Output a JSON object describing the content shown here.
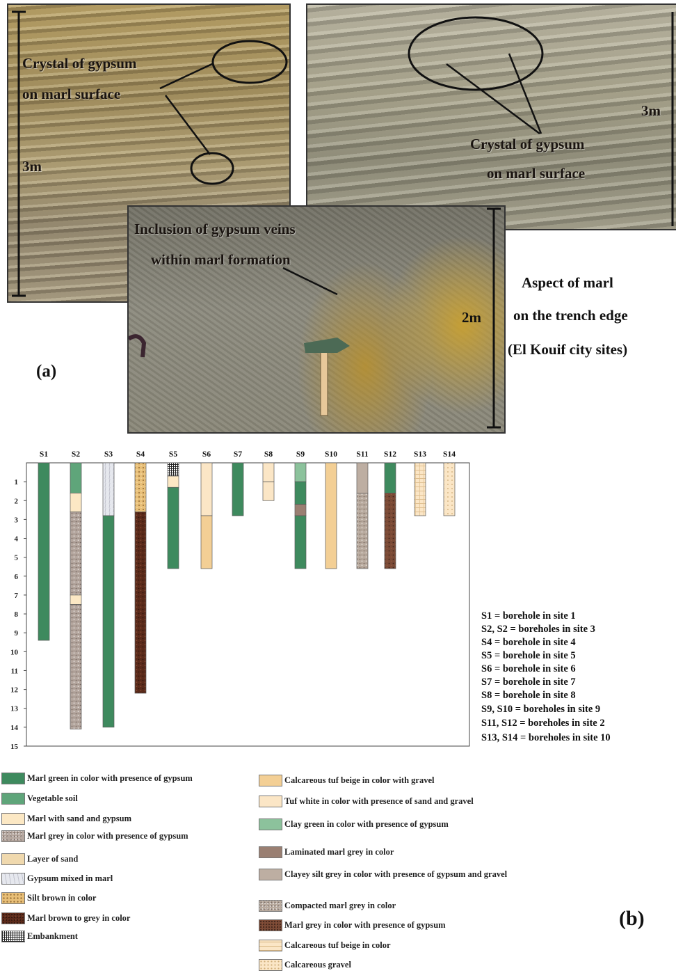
{
  "panel_a": {
    "label": "(a)",
    "photo_left": {
      "scale": "3m",
      "caption_line1": "Crystal of gypsum",
      "caption_line2": "on marl surface"
    },
    "photo_right": {
      "scale": "3m",
      "caption_line1": "Crystal of gypsum",
      "caption_line2": "on marl surface"
    },
    "photo_bottom": {
      "scale": "2m",
      "caption_line1": "Inclusion of gypsum veins",
      "caption_line2": "within marl formation"
    },
    "aspect_line1": "Aspect of marl",
    "aspect_line2": "on the trench edge",
    "aspect_line3": "(El Kouif city sites)"
  },
  "panel_b": {
    "label": "(b)",
    "key": [
      "S1 = borehole in site 1",
      "S2, S2 = boreholes in site 3",
      "S4 = borehole in site 4",
      "S5 = borehole in site 5",
      "S6 = borehole in site 6",
      "S7 = borehole in site 7",
      "S8 = borehole in site 8",
      "S9, S10 = boreholes in site 9",
      "S11, S12 = boreholes in site 2",
      "S13, S14 = boreholes in site 10"
    ]
  },
  "legend_left": [
    {
      "label": "Marl green in color with presence of gypsum",
      "fill": "#3e8a5e",
      "pattern": "solid"
    },
    {
      "label": "Vegetable soil",
      "fill": "#5fa57a",
      "pattern": "solid"
    },
    {
      "label": "Marl with sand and gypsum",
      "fill": "#fce8c4",
      "pattern": "solid"
    },
    {
      "label": "Marl grey in color with presence of gypsum",
      "fill": "#b4a69e",
      "pattern": "speckle"
    },
    {
      "label": "Layer of sand",
      "fill": "#f0d9ae",
      "pattern": "solid"
    },
    {
      "label": "Gypsum mixed in marl",
      "fill": "#e6e8ee",
      "pattern": "streak"
    },
    {
      "label": "Silt brown in color",
      "fill": "#e8bf78",
      "pattern": "dots"
    },
    {
      "label": "Marl brown to grey in color",
      "fill": "#5a2a1a",
      "pattern": "speckle-dark"
    },
    {
      "label": "Embankment",
      "fill": "#ffffff",
      "pattern": "grid"
    }
  ],
  "legend_right": [
    {
      "label": "Calcareous tuf beige in color with gravel",
      "fill": "#f3cf95",
      "pattern": "solid"
    },
    {
      "label": "Tuf white in color with presence of sand and gravel",
      "fill": "#fbe6c6",
      "pattern": "solid"
    },
    {
      "label": "Clay green in color with presence of gypsum",
      "fill": "#8cc29c",
      "pattern": "solid"
    },
    {
      "label": "Laminated marl grey in color",
      "fill": "#9a7f72",
      "pattern": "solid"
    },
    {
      "label": "Clayey silt grey in color with presence of gypsum and gravel",
      "fill": "#bdaea2",
      "pattern": "solid"
    },
    {
      "label": "Compacted marl grey in color",
      "fill": "#b9ab9f",
      "pattern": "speckle"
    },
    {
      "label": "Marl grey in color with presence of gypsum",
      "fill": "#7a4a36",
      "pattern": "speckle-dark"
    },
    {
      "label": "Calcareous tuf beige in color",
      "fill": "#fbe6c6",
      "pattern": "brick"
    },
    {
      "label": "Calcareous gravel",
      "fill": "#fbe6c6",
      "pattern": "dots-light"
    }
  ],
  "chart_data": {
    "type": "borehole-log",
    "ylabels": [
      "1",
      "2",
      "3",
      "4",
      "5",
      "6",
      "7",
      "8",
      "9",
      "10",
      "11",
      "12",
      "13",
      "14",
      "15"
    ],
    "ylim": [
      0,
      15
    ],
    "boreholes": [
      {
        "name": "S1",
        "layers": [
          {
            "from": 0,
            "to": 9.4,
            "fill": "#3e8a5e",
            "pattern": "solid"
          }
        ]
      },
      {
        "name": "S2",
        "layers": [
          {
            "from": 0,
            "to": 1.6,
            "fill": "#5fa57a",
            "pattern": "solid"
          },
          {
            "from": 1.6,
            "to": 2.6,
            "fill": "#fce8c4",
            "pattern": "solid"
          },
          {
            "from": 2.6,
            "to": 7.0,
            "fill": "#b4a69e",
            "pattern": "speckle"
          },
          {
            "from": 7.0,
            "to": 7.5,
            "fill": "#fce8c4",
            "pattern": "solid"
          },
          {
            "from": 7.5,
            "to": 14.1,
            "fill": "#b4a69e",
            "pattern": "speckle"
          }
        ]
      },
      {
        "name": "S3",
        "layers": [
          {
            "from": 0,
            "to": 2.8,
            "fill": "#e6e8ee",
            "pattern": "streak"
          },
          {
            "from": 2.8,
            "to": 14.0,
            "fill": "#3e8a5e",
            "pattern": "solid"
          }
        ]
      },
      {
        "name": "S4",
        "layers": [
          {
            "from": 0,
            "to": 2.6,
            "fill": "#e8bf78",
            "pattern": "dots"
          },
          {
            "from": 2.6,
            "to": 12.2,
            "fill": "#5a2a1a",
            "pattern": "speckle-dark"
          }
        ]
      },
      {
        "name": "S5",
        "layers": [
          {
            "from": 0,
            "to": 0.7,
            "fill": "#ffffff",
            "pattern": "grid"
          },
          {
            "from": 0.7,
            "to": 1.3,
            "fill": "#fce8c4",
            "pattern": "solid"
          },
          {
            "from": 1.3,
            "to": 5.6,
            "fill": "#3e8a5e",
            "pattern": "solid"
          }
        ]
      },
      {
        "name": "S6",
        "layers": [
          {
            "from": 0,
            "to": 2.8,
            "fill": "#fbe6c6",
            "pattern": "solid"
          },
          {
            "from": 2.8,
            "to": 5.6,
            "fill": "#f3cf95",
            "pattern": "solid"
          }
        ]
      },
      {
        "name": "S7",
        "layers": [
          {
            "from": 0,
            "to": 2.8,
            "fill": "#3e8a5e",
            "pattern": "solid"
          }
        ]
      },
      {
        "name": "S8",
        "layers": [
          {
            "from": 0,
            "to": 1.0,
            "fill": "#fbe6c6",
            "pattern": "solid"
          },
          {
            "from": 1.0,
            "to": 2.0,
            "fill": "#fbe6c6",
            "pattern": "solid"
          }
        ]
      },
      {
        "name": "S9",
        "layers": [
          {
            "from": 0,
            "to": 1.0,
            "fill": "#8cc29c",
            "pattern": "solid"
          },
          {
            "from": 1.0,
            "to": 2.2,
            "fill": "#3e8a5e",
            "pattern": "solid"
          },
          {
            "from": 2.2,
            "to": 2.8,
            "fill": "#9a7f72",
            "pattern": "solid"
          },
          {
            "from": 2.8,
            "to": 5.6,
            "fill": "#3e8a5e",
            "pattern": "solid"
          }
        ]
      },
      {
        "name": "S10",
        "layers": [
          {
            "from": 0,
            "to": 5.6,
            "fill": "#f3cf95",
            "pattern": "solid"
          }
        ]
      },
      {
        "name": "S11",
        "layers": [
          {
            "from": 0,
            "to": 1.6,
            "fill": "#bdaea2",
            "pattern": "solid"
          },
          {
            "from": 1.6,
            "to": 5.6,
            "fill": "#b9ab9f",
            "pattern": "speckle"
          }
        ]
      },
      {
        "name": "S12",
        "layers": [
          {
            "from": 0,
            "to": 1.6,
            "fill": "#3e8a5e",
            "pattern": "solid"
          },
          {
            "from": 1.6,
            "to": 5.6,
            "fill": "#7a4a36",
            "pattern": "speckle-dark"
          }
        ]
      },
      {
        "name": "S13",
        "layers": [
          {
            "from": 0,
            "to": 2.8,
            "fill": "#fbe6c6",
            "pattern": "brick"
          }
        ]
      },
      {
        "name": "S14",
        "layers": [
          {
            "from": 0,
            "to": 2.8,
            "fill": "#fbe6c6",
            "pattern": "dots-light"
          }
        ]
      }
    ]
  }
}
